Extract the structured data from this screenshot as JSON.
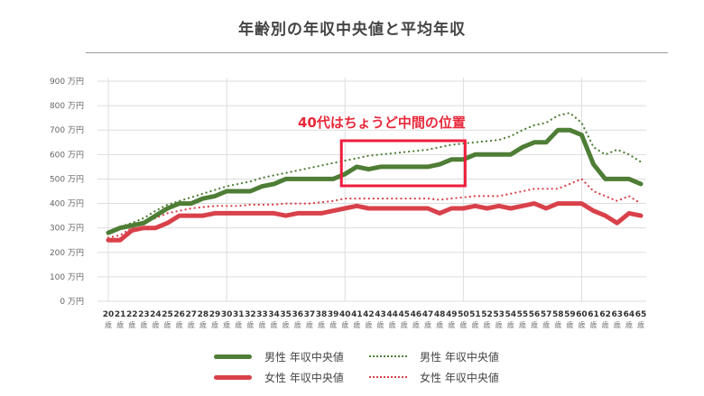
{
  "title": "年齢別の年収中央値と平均年収",
  "annotation": "40代はちょうど中間の位置",
  "colors": {
    "male": "#4e7d35",
    "female": "#d9414a",
    "highlight_box": "#ee1c3c",
    "annotation_text": "#e8283a",
    "grid": "#dddddd"
  },
  "legend": [
    {
      "label": "男性 年収中央値",
      "style": "solid",
      "color": "#4e7d35"
    },
    {
      "label": "男性 年収中央値",
      "style": "dotted",
      "color": "#4e7d35"
    },
    {
      "label": "女性 年収中央値",
      "style": "solid",
      "color": "#d9414a"
    },
    {
      "label": "女性 年収中央値",
      "style": "dotted",
      "color": "#d9414a"
    }
  ],
  "chart_data": {
    "type": "line",
    "title": "年齢別の年収中央値と平均年収",
    "xlabel": "",
    "ylabel": "",
    "ylim": [
      0,
      900
    ],
    "y_ticks": [
      "0 万円",
      "100 万円",
      "200 万円",
      "300 万円",
      "400 万円",
      "500 万円",
      "600 万円",
      "700 万円",
      "800 万円",
      "900 万円"
    ],
    "x_unit": "歳",
    "x": [
      20,
      21,
      22,
      23,
      24,
      25,
      26,
      27,
      28,
      29,
      30,
      31,
      32,
      33,
      34,
      35,
      36,
      37,
      38,
      39,
      40,
      41,
      42,
      43,
      44,
      45,
      46,
      47,
      48,
      49,
      50,
      51,
      52,
      53,
      54,
      55,
      56,
      57,
      58,
      59,
      60,
      61,
      62,
      63,
      64,
      65
    ],
    "grid": true,
    "legend_position": "bottom",
    "annotation": {
      "text": "40代はちょうど中間の位置",
      "box_x_range": [
        40,
        50
      ]
    },
    "series": [
      {
        "name": "男性 年収中央値",
        "style": "solid",
        "color": "#4e7d35",
        "values": [
          280,
          300,
          310,
          320,
          350,
          380,
          400,
          400,
          420,
          430,
          450,
          450,
          450,
          470,
          480,
          500,
          500,
          500,
          500,
          500,
          520,
          550,
          540,
          550,
          550,
          550,
          550,
          550,
          560,
          580,
          580,
          600,
          600,
          600,
          600,
          630,
          650,
          650,
          700,
          700,
          680,
          560,
          500,
          500,
          500,
          480
        ]
      },
      {
        "name": "男性 年収中央値",
        "style": "dotted",
        "color": "#4e7d35",
        "values": [
          285,
          305,
          320,
          340,
          370,
          395,
          410,
          425,
          440,
          455,
          470,
          480,
          490,
          505,
          515,
          525,
          535,
          545,
          555,
          565,
          575,
          585,
          595,
          600,
          605,
          610,
          615,
          620,
          630,
          640,
          645,
          650,
          655,
          660,
          675,
          700,
          720,
          730,
          760,
          770,
          730,
          630,
          600,
          620,
          600,
          570
        ]
      },
      {
        "name": "女性 年収中央値",
        "style": "solid",
        "color": "#d9414a",
        "values": [
          250,
          250,
          290,
          300,
          300,
          320,
          350,
          350,
          350,
          360,
          360,
          360,
          360,
          360,
          360,
          350,
          360,
          360,
          360,
          370,
          380,
          390,
          380,
          380,
          380,
          380,
          380,
          380,
          360,
          380,
          380,
          390,
          380,
          390,
          380,
          390,
          400,
          380,
          400,
          400,
          400,
          370,
          350,
          320,
          360,
          350
        ]
      },
      {
        "name": "女性 年収中央値",
        "style": "dotted",
        "color": "#d9414a",
        "values": [
          260,
          270,
          300,
          320,
          340,
          360,
          370,
          380,
          385,
          390,
          390,
          390,
          395,
          395,
          395,
          400,
          400,
          400,
          405,
          410,
          420,
          420,
          420,
          420,
          420,
          420,
          420,
          420,
          415,
          420,
          425,
          430,
          430,
          430,
          440,
          450,
          460,
          460,
          460,
          480,
          500,
          450,
          430,
          410,
          430,
          400
        ]
      }
    ]
  }
}
